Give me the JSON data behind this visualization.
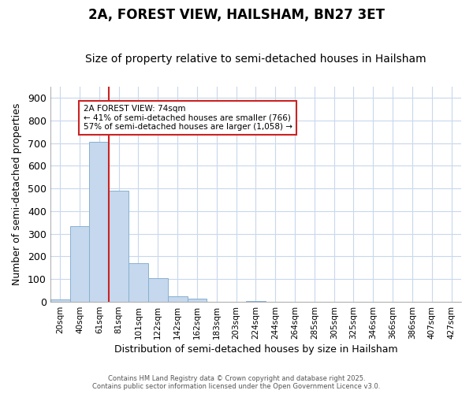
{
  "title": "2A, FOREST VIEW, HAILSHAM, BN27 3ET",
  "subtitle": "Size of property relative to semi-detached houses in Hailsham",
  "xlabel": "Distribution of semi-detached houses by size in Hailsham",
  "ylabel": "Number of semi-detached properties",
  "categories": [
    "20sqm",
    "40sqm",
    "61sqm",
    "81sqm",
    "101sqm",
    "122sqm",
    "142sqm",
    "162sqm",
    "183sqm",
    "203sqm",
    "224sqm",
    "244sqm",
    "264sqm",
    "285sqm",
    "305sqm",
    "325sqm",
    "346sqm",
    "366sqm",
    "386sqm",
    "407sqm",
    "427sqm"
  ],
  "values": [
    10,
    335,
    705,
    490,
    170,
    105,
    25,
    15,
    0,
    0,
    5,
    0,
    0,
    0,
    0,
    0,
    0,
    0,
    0,
    0,
    0
  ],
  "bar_color": "#c5d8ed",
  "bar_edge_color": "#88b0d0",
  "property_line_color": "#cc2222",
  "property_line_index": 2.5,
  "annotation_text": "2A FOREST VIEW: 74sqm\n← 41% of semi-detached houses are smaller (766)\n57% of semi-detached houses are larger (1,058) →",
  "annotation_box_edge_color": "#cc2222",
  "ylim": [
    0,
    950
  ],
  "yticks": [
    0,
    100,
    200,
    300,
    400,
    500,
    600,
    700,
    800,
    900
  ],
  "footer_line1": "Contains HM Land Registry data © Crown copyright and database right 2025.",
  "footer_line2": "Contains public sector information licensed under the Open Government Licence v3.0.",
  "background_color": "#ffffff",
  "plot_background_color": "#ffffff",
  "grid_color": "#c8d8ec",
  "title_fontsize": 12,
  "subtitle_fontsize": 10
}
